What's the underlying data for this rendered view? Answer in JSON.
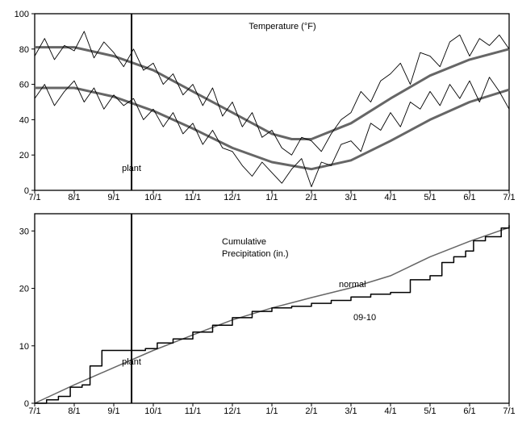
{
  "chart_data": [
    {
      "type": "line",
      "title": "Temperature (°F)",
      "xlabel": "",
      "ylabel": "",
      "x_ticks": [
        "7/1",
        "8/1",
        "9/1",
        "10/1",
        "11/1",
        "12/1",
        "1/1",
        "2/1",
        "3/1",
        "4/1",
        "5/1",
        "6/1",
        "7/1"
      ],
      "ylim": [
        0,
        100
      ],
      "y_ticks": [
        0,
        20,
        40,
        60,
        80,
        100
      ],
      "xlim_months": [
        0,
        12
      ],
      "grid": false,
      "marker": {
        "label": "plant",
        "x_month": 2.45
      },
      "series": [
        {
          "name": "",
          "color": "#666666",
          "width": 3,
          "x": [
            0,
            1,
            2,
            3,
            4,
            5,
            6,
            6.5,
            7,
            8,
            9,
            10,
            11,
            12
          ],
          "y": [
            81,
            81,
            76,
            68,
            56,
            44,
            32,
            29,
            29,
            38,
            52,
            65,
            74,
            80
          ]
        },
        {
          "name": "",
          "color": "#666666",
          "width": 3,
          "x": [
            0,
            1,
            2,
            3,
            4,
            5,
            6,
            7,
            8,
            9,
            10,
            11,
            12
          ],
          "y": [
            58,
            58,
            53,
            45,
            35,
            24,
            16,
            12,
            17,
            28,
            40,
            50,
            57
          ]
        },
        {
          "name": "",
          "color": "#000000",
          "width": 0.9,
          "x": [
            0,
            0.25,
            0.5,
            0.75,
            1,
            1.25,
            1.5,
            1.75,
            2,
            2.25,
            2.5,
            2.75,
            3,
            3.25,
            3.5,
            3.75,
            4,
            4.25,
            4.5,
            4.75,
            5,
            5.25,
            5.5,
            5.75,
            6,
            6.25,
            6.5,
            6.75,
            7,
            7.25,
            7.5,
            7.75,
            8,
            8.25,
            8.5,
            8.75,
            9,
            9.25,
            9.5,
            9.75,
            10,
            10.25,
            10.5,
            10.75,
            11,
            11.25,
            11.5,
            11.75,
            12
          ],
          "y": [
            76,
            86,
            74,
            82,
            79,
            90,
            75,
            84,
            78,
            70,
            80,
            68,
            72,
            60,
            66,
            54,
            60,
            48,
            58,
            42,
            50,
            36,
            44,
            30,
            34,
            24,
            20,
            30,
            28,
            22,
            32,
            40,
            44,
            56,
            50,
            62,
            66,
            72,
            60,
            78,
            76,
            70,
            84,
            88,
            76,
            86,
            82,
            88,
            80
          ]
        },
        {
          "name": "",
          "color": "#000000",
          "width": 0.9,
          "x": [
            0,
            0.25,
            0.5,
            0.75,
            1,
            1.25,
            1.5,
            1.75,
            2,
            2.25,
            2.5,
            2.75,
            3,
            3.25,
            3.5,
            3.75,
            4,
            4.25,
            4.5,
            4.75,
            5,
            5.25,
            5.5,
            5.75,
            6,
            6.25,
            6.5,
            6.75,
            7,
            7.25,
            7.5,
            7.75,
            8,
            8.25,
            8.5,
            8.75,
            9,
            9.25,
            9.5,
            9.75,
            10,
            10.25,
            10.5,
            10.75,
            11,
            11.25,
            11.5,
            11.75,
            12
          ],
          "y": [
            52,
            60,
            48,
            56,
            62,
            50,
            58,
            46,
            54,
            48,
            52,
            40,
            46,
            36,
            44,
            32,
            38,
            26,
            34,
            24,
            22,
            14,
            8,
            16,
            10,
            4,
            12,
            18,
            2,
            16,
            14,
            26,
            28,
            22,
            38,
            34,
            44,
            36,
            50,
            46,
            56,
            48,
            60,
            52,
            62,
            50,
            64,
            56,
            46
          ]
        }
      ]
    },
    {
      "type": "line",
      "title": "Cumulative Precipitation (in.)",
      "title_lines": [
        "Cumulative",
        "Precipitation (in.)"
      ],
      "xlabel": "",
      "ylabel": "",
      "x_ticks": [
        "7/1",
        "8/1",
        "9/1",
        "10/1",
        "11/1",
        "12/1",
        "1/1",
        "2/1",
        "3/1",
        "4/1",
        "5/1",
        "6/1",
        "7/1"
      ],
      "ylim": [
        0,
        33
      ],
      "y_ticks": [
        0,
        10,
        20,
        30
      ],
      "xlim_months": [
        0,
        12
      ],
      "grid": false,
      "marker": {
        "label": "plant",
        "x_month": 2.45
      },
      "series": [
        {
          "name": "normal",
          "color": "#666666",
          "width": 1.5,
          "step": false,
          "x": [
            0,
            1,
            2,
            3,
            4,
            5,
            6,
            7,
            8,
            9,
            10,
            11,
            12
          ],
          "y": [
            0,
            3.2,
            6.2,
            9.2,
            11.9,
            14.5,
            16.6,
            18.4,
            20.1,
            22.2,
            25.5,
            28.2,
            30.6
          ]
        },
        {
          "name": "09-10",
          "color": "#000000",
          "width": 1.5,
          "step": true,
          "x": [
            0,
            0.3,
            0.6,
            0.9,
            1.2,
            1.4,
            1.7,
            2.4,
            2.8,
            3.1,
            3.5,
            4,
            4.5,
            5,
            5.5,
            6,
            6.5,
            7,
            7.5,
            8,
            8.5,
            9,
            9.5,
            10,
            10.3,
            10.6,
            10.9,
            11.1,
            11.4,
            11.8,
            12
          ],
          "y": [
            0,
            0.6,
            1.2,
            2.8,
            3.2,
            6.5,
            9.2,
            9.2,
            9.5,
            10.5,
            11.2,
            12.4,
            13.6,
            14.9,
            16,
            16.6,
            16.9,
            17.4,
            17.9,
            18.5,
            19,
            19.3,
            21.5,
            22.2,
            24.5,
            25.5,
            26.5,
            28.3,
            29,
            30.5,
            31
          ]
        }
      ]
    }
  ]
}
